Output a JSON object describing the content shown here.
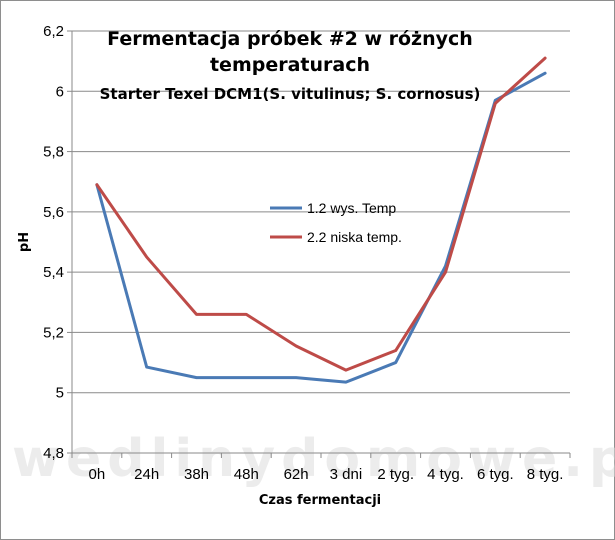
{
  "chart_data": {
    "type": "line",
    "title": "Fermentacja próbek #2 w różnych",
    "title_line2": "temperaturach",
    "subtitle": "Starter Texel DCM1(S. vitulinus; S. cornosus)",
    "xlabel": "Czas fermentacji",
    "ylabel": "pH",
    "categories": [
      "0h",
      "24h",
      "38h",
      "48h",
      "62h",
      "3 dni",
      "2 tyg.",
      "4 tyg.",
      "6 tyg.",
      "8 tyg."
    ],
    "ylim": [
      4.8,
      6.2
    ],
    "yticks": [
      4.8,
      5.0,
      5.2,
      5.4,
      5.6,
      5.8,
      6.0,
      6.2
    ],
    "ytick_labels": [
      "4,8",
      "5",
      "5,2",
      "5,4",
      "5,6",
      "5,8",
      "6",
      "6,2"
    ],
    "grid": true,
    "legend_position": "center",
    "series": [
      {
        "name": "1.2 wys. Temp",
        "color": "#4a7ab5",
        "values": [
          5.69,
          5.085,
          5.05,
          5.05,
          5.05,
          5.035,
          5.1,
          5.42,
          5.97,
          6.06
        ]
      },
      {
        "name": "2.2 niska temp.",
        "color": "#be4b48",
        "values": [
          5.69,
          5.45,
          5.26,
          5.26,
          5.155,
          5.075,
          5.14,
          5.4,
          5.96,
          6.11
        ]
      }
    ]
  },
  "watermark": "wedlinydomowe.pl"
}
